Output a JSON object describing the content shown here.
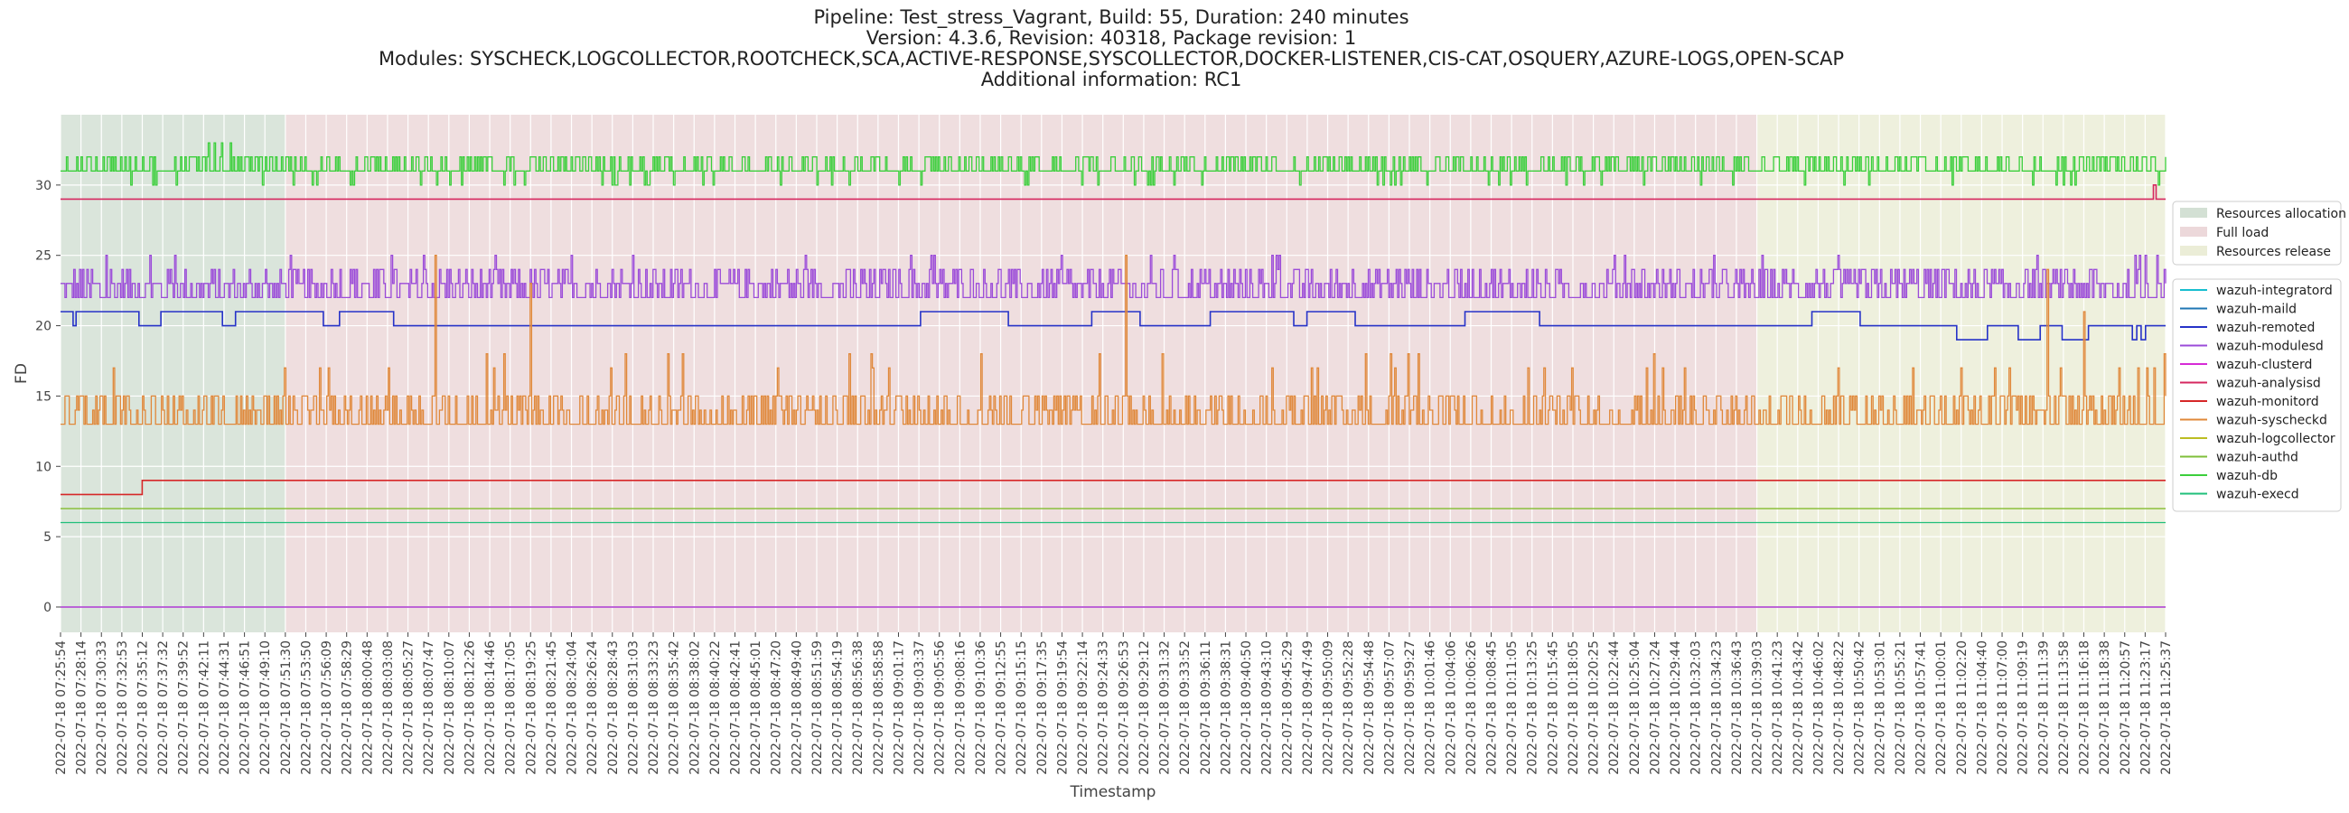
{
  "title_lines": [
    "Pipeline: Test_stress_Vagrant, Build: 55, Duration: 240 minutes",
    "Version: 4.3.6, Revision: 40318, Package revision: 1",
    "Modules: SYSCHECK,LOGCOLLECTOR,ROOTCHECK,SCA,ACTIVE-RESPONSE,SYSCOLLECTOR,DOCKER-LISTENER,CIS-CAT,OSQUERY,AZURE-LOGS,OPEN-SCAP",
    "Additional information: RC1"
  ],
  "chart_data": {
    "type": "line",
    "xlabel": "Timestamp",
    "ylabel": "FD",
    "ylim": [
      -1.8,
      35
    ],
    "yticks": [
      0,
      5,
      10,
      15,
      20,
      25,
      30
    ],
    "grid": true,
    "x_start": "2022-07-18 07:25:54",
    "x_end": "2022-07-18 11:25:37",
    "xtick_labels": [
      "2022-07-18 07:25:54",
      "2022-07-18 07:28:14",
      "2022-07-18 07:30:33",
      "2022-07-18 07:32:53",
      "2022-07-18 07:35:12",
      "2022-07-18 07:37:32",
      "2022-07-18 07:39:52",
      "2022-07-18 07:42:11",
      "2022-07-18 07:44:31",
      "2022-07-18 07:46:51",
      "2022-07-18 07:49:10",
      "2022-07-18 07:51:30",
      "2022-07-18 07:53:50",
      "2022-07-18 07:56:09",
      "2022-07-18 07:58:29",
      "2022-07-18 08:00:48",
      "2022-07-18 08:03:08",
      "2022-07-18 08:05:27",
      "2022-07-18 08:07:47",
      "2022-07-18 08:10:07",
      "2022-07-18 08:12:26",
      "2022-07-18 08:14:46",
      "2022-07-18 08:17:05",
      "2022-07-18 08:19:25",
      "2022-07-18 08:21:45",
      "2022-07-18 08:24:04",
      "2022-07-18 08:26:24",
      "2022-07-18 08:28:43",
      "2022-07-18 08:31:03",
      "2022-07-18 08:33:23",
      "2022-07-18 08:35:42",
      "2022-07-18 08:38:02",
      "2022-07-18 08:40:22",
      "2022-07-18 08:42:41",
      "2022-07-18 08:45:01",
      "2022-07-18 08:47:20",
      "2022-07-18 08:49:40",
      "2022-07-18 08:51:59",
      "2022-07-18 08:54:19",
      "2022-07-18 08:56:38",
      "2022-07-18 08:58:58",
      "2022-07-18 09:01:17",
      "2022-07-18 09:03:37",
      "2022-07-18 09:05:56",
      "2022-07-18 09:08:16",
      "2022-07-18 09:10:36",
      "2022-07-18 09:12:55",
      "2022-07-18 09:15:15",
      "2022-07-18 09:17:35",
      "2022-07-18 09:19:54",
      "2022-07-18 09:22:14",
      "2022-07-18 09:24:33",
      "2022-07-18 09:26:53",
      "2022-07-18 09:29:12",
      "2022-07-18 09:31:32",
      "2022-07-18 09:33:52",
      "2022-07-18 09:36:11",
      "2022-07-18 09:38:31",
      "2022-07-18 09:40:50",
      "2022-07-18 09:43:10",
      "2022-07-18 09:45:29",
      "2022-07-18 09:47:49",
      "2022-07-18 09:50:09",
      "2022-07-18 09:52:28",
      "2022-07-18 09:54:48",
      "2022-07-18 09:57:07",
      "2022-07-18 09:59:27",
      "2022-07-18 10:01:46",
      "2022-07-18 10:04:06",
      "2022-07-18 10:06:26",
      "2022-07-18 10:08:45",
      "2022-07-18 10:11:05",
      "2022-07-18 10:13:25",
      "2022-07-18 10:15:45",
      "2022-07-18 10:18:05",
      "2022-07-18 10:20:25",
      "2022-07-18 10:22:44",
      "2022-07-18 10:25:04",
      "2022-07-18 10:27:24",
      "2022-07-18 10:29:44",
      "2022-07-18 10:32:03",
      "2022-07-18 10:34:23",
      "2022-07-18 10:36:43",
      "2022-07-18 10:39:03",
      "2022-07-18 10:41:23",
      "2022-07-18 10:43:42",
      "2022-07-18 10:46:02",
      "2022-07-18 10:48:22",
      "2022-07-18 10:50:42",
      "2022-07-18 10:53:01",
      "2022-07-18 10:55:21",
      "2022-07-18 10:57:41",
      "2022-07-18 11:00:01",
      "2022-07-18 11:02:20",
      "2022-07-18 11:04:40",
      "2022-07-18 11:07:00",
      "2022-07-18 11:09:19",
      "2022-07-18 11:11:39",
      "2022-07-18 11:13:58",
      "2022-07-18 11:16:18",
      "2022-07-18 11:18:38",
      "2022-07-18 11:20:57",
      "2022-07-18 11:23:17",
      "2022-07-18 11:25:37"
    ],
    "phases": [
      {
        "name": "Resources allocation",
        "start": "2022-07-18 07:25:54",
        "end": "2022-07-18 07:51:30",
        "color": "#9dbba0"
      },
      {
        "name": "Full load",
        "start": "2022-07-18 07:51:30",
        "end": "2022-07-18 10:39:03",
        "color": "#d4a8ac"
      },
      {
        "name": "Resources release",
        "start": "2022-07-18 10:39:03",
        "end": "2022-07-18 11:25:37",
        "color": "#d3d7a6"
      }
    ],
    "series": [
      {
        "name": "wazuh-integratord",
        "color": "#17becf",
        "pattern": "flat",
        "base": 0
      },
      {
        "name": "wazuh-maild",
        "color": "#1f77b4",
        "pattern": "flat",
        "base": 0
      },
      {
        "name": "wazuh-remoted",
        "color": "#2632c8",
        "pattern": "steps",
        "base": 20,
        "steps": [
          [
            "2022-07-18 07:25:54",
            21
          ],
          [
            "2022-07-18 07:27:20",
            20
          ],
          [
            "2022-07-18 07:27:40",
            21
          ],
          [
            "2022-07-18 07:34:50",
            20
          ],
          [
            "2022-07-18 07:37:20",
            21
          ],
          [
            "2022-07-18 07:44:20",
            20
          ],
          [
            "2022-07-18 07:45:50",
            21
          ],
          [
            "2022-07-18 07:55:50",
            20
          ],
          [
            "2022-07-18 07:57:40",
            21
          ],
          [
            "2022-07-18 08:03:50",
            20
          ],
          [
            "2022-07-18 09:03:50",
            21
          ],
          [
            "2022-07-18 09:13:50",
            20
          ],
          [
            "2022-07-18 09:23:20",
            21
          ],
          [
            "2022-07-18 09:28:50",
            20
          ],
          [
            "2022-07-18 09:36:50",
            21
          ],
          [
            "2022-07-18 09:46:20",
            20
          ],
          [
            "2022-07-18 09:47:50",
            21
          ],
          [
            "2022-07-18 09:53:20",
            20
          ],
          [
            "2022-07-18 10:05:50",
            21
          ],
          [
            "2022-07-18 10:14:20",
            20
          ],
          [
            "2022-07-18 10:37:20",
            20
          ],
          [
            "2022-07-18 10:45:20",
            21
          ],
          [
            "2022-07-18 10:50:50",
            20
          ],
          [
            "2022-07-18 11:01:50",
            19
          ],
          [
            "2022-07-18 11:05:20",
            20
          ],
          [
            "2022-07-18 11:08:50",
            19
          ],
          [
            "2022-07-18 11:11:20",
            20
          ],
          [
            "2022-07-18 11:13:50",
            19
          ],
          [
            "2022-07-18 11:16:50",
            20
          ],
          [
            "2022-07-18 11:21:50",
            19
          ],
          [
            "2022-07-18 11:22:20",
            20
          ],
          [
            "2022-07-18 11:22:50",
            19
          ],
          [
            "2022-07-18 11:23:20",
            20
          ]
        ]
      },
      {
        "name": "wazuh-modulesd",
        "color": "#9b4bd9",
        "pattern": "dense",
        "base": 22,
        "low": 22,
        "high": 23,
        "spike": 24,
        "max": 25
      },
      {
        "name": "wazuh-clusterd",
        "color": "#d62bd6",
        "pattern": "flat",
        "base": 0
      },
      {
        "name": "wazuh-analysisd",
        "color": "#d6275f",
        "pattern": "flat_spike",
        "base": 29,
        "spike_at": "2022-07-18 11:24:20",
        "spike": 30
      },
      {
        "name": "wazuh-monitord",
        "color": "#d62728",
        "pattern": "steps",
        "base": 9,
        "steps": [
          [
            "2022-07-18 07:25:54",
            8
          ],
          [
            "2022-07-18 07:35:12",
            9
          ]
        ]
      },
      {
        "name": "wazuh-syscheckd",
        "color": "#e0883a",
        "pattern": "dense",
        "base": 13,
        "low": 13,
        "high": 15,
        "spike": 18,
        "max": 26
      },
      {
        "name": "wazuh-logcollector",
        "color": "#bcbd22",
        "pattern": "flat",
        "base": 7
      },
      {
        "name": "wazuh-authd",
        "color": "#7fbf3a",
        "pattern": "flat",
        "base": 7
      },
      {
        "name": "wazuh-db",
        "color": "#3ccf3c",
        "pattern": "dense",
        "base": 31,
        "low": 31,
        "high": 32,
        "spike": 30,
        "max": 33
      },
      {
        "name": "wazuh-execd",
        "color": "#1fbf7a",
        "pattern": "flat",
        "base": 6
      }
    ]
  }
}
